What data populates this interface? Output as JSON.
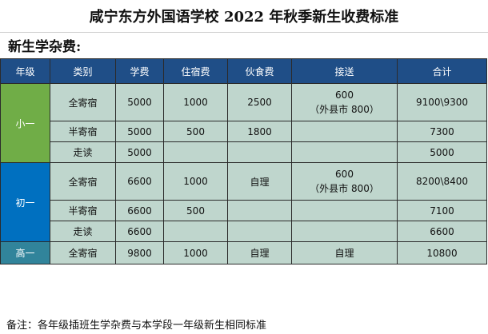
{
  "title": "咸宁东方外国语学校 2022 年秋季新生收费标准",
  "subtitle": "新生学杂费:",
  "headers": [
    "年级",
    "类别",
    "学费",
    "住宿费",
    "伙食费",
    "接送",
    "合计"
  ],
  "groups": {
    "xiao": {
      "grade": "小一",
      "rows": [
        {
          "category": "全寄宿",
          "tuition": "5000",
          "lodging": "1000",
          "meals": "2500",
          "shuttle_line1": "600",
          "shuttle_line2": "（外县市 800）",
          "total": "9100\\9300"
        },
        {
          "category": "半寄宿",
          "tuition": "5000",
          "lodging": "500",
          "meals": "1800",
          "shuttle": "",
          "total": "7300"
        },
        {
          "category": "走读",
          "tuition": "5000",
          "lodging": "",
          "meals": "",
          "shuttle": "",
          "total": "5000"
        }
      ]
    },
    "chu": {
      "grade": "初一",
      "rows": [
        {
          "category": "全寄宿",
          "tuition": "6600",
          "lodging": "1000",
          "meals": "自理",
          "shuttle_line1": "600",
          "shuttle_line2": "（外县市 800）",
          "total": "8200\\8400"
        },
        {
          "category": "半寄宿",
          "tuition": "6600",
          "lodging": "500",
          "meals": "",
          "shuttle": "",
          "total": "7100"
        },
        {
          "category": "走读",
          "tuition": "6600",
          "lodging": "",
          "meals": "",
          "shuttle": "",
          "total": "6600"
        }
      ]
    },
    "gao": {
      "grade": "高一",
      "rows": [
        {
          "category": "全寄宿",
          "tuition": "9800",
          "lodging": "1000",
          "meals": "自理",
          "shuttle": "自理",
          "total": "10800"
        }
      ]
    }
  },
  "colors": {
    "header": "#1f4e87",
    "grade_xiao": "#70ad47",
    "grade_chu": "#0070c0",
    "grade_gao": "#31849b",
    "cell": "#bfd6cd"
  },
  "note": "备注：各年级插班生学杂费与本学段一年级新生相同标准"
}
